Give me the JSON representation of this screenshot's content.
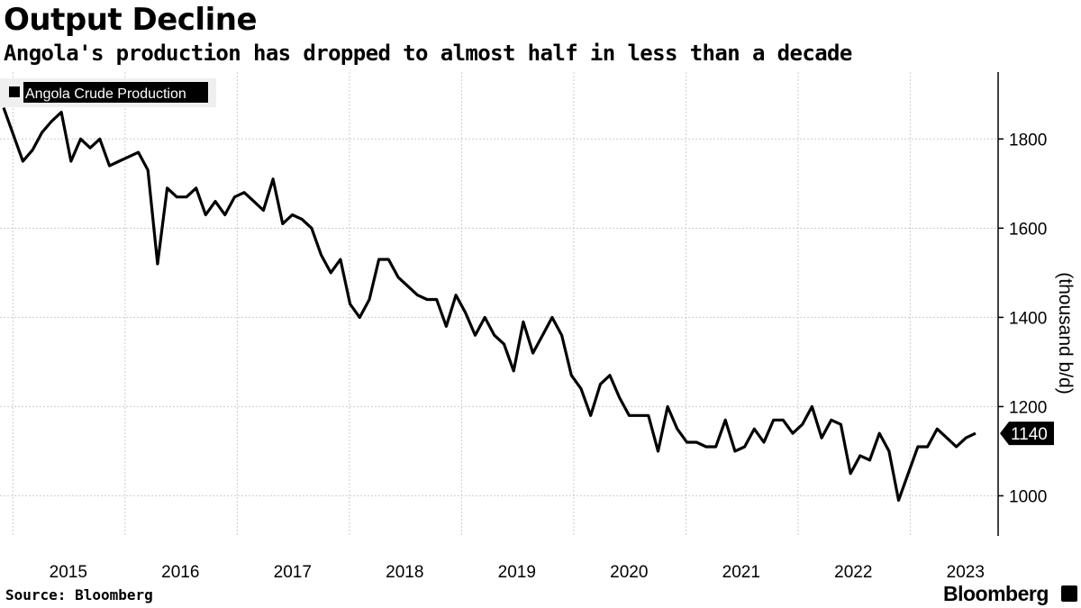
{
  "title": "Output Decline",
  "subtitle": "Angola's production has dropped to almost half in less than a decade",
  "source": "Source: Bloomberg",
  "brand": "Bloomberg",
  "chart_data": {
    "type": "line",
    "title": "Output Decline",
    "subtitle": "Angola's production has dropped to almost half in less than a decade",
    "ylabel": "(thousand b/d)",
    "ylim": [
      910,
      1950
    ],
    "y_ticks": [
      1000,
      1200,
      1400,
      1600,
      1800
    ],
    "x_ticks": [
      "2015",
      "2016",
      "2017",
      "2018",
      "2019",
      "2020",
      "2021",
      "2022",
      "2023"
    ],
    "x_start": "2014-12",
    "x_end": "2023-08",
    "grid": true,
    "legend": "top-left",
    "y_axis_side": "right",
    "line_color": "#000000",
    "end_value_label": "1140",
    "series": [
      {
        "name": "Angola Crude Production",
        "values": [
          1870,
          1810,
          1750,
          1775,
          1815,
          1840,
          1860,
          1750,
          1800,
          1780,
          1800,
          1740,
          1750,
          1760,
          1770,
          1730,
          1520,
          1690,
          1670,
          1670,
          1690,
          1630,
          1660,
          1630,
          1670,
          1680,
          1660,
          1640,
          1710,
          1610,
          1630,
          1620,
          1600,
          1540,
          1500,
          1530,
          1430,
          1400,
          1440,
          1530,
          1530,
          1490,
          1470,
          1450,
          1440,
          1440,
          1380,
          1450,
          1410,
          1360,
          1400,
          1360,
          1340,
          1280,
          1390,
          1320,
          1360,
          1400,
          1360,
          1270,
          1240,
          1180,
          1250,
          1270,
          1220,
          1180,
          1180,
          1180,
          1100,
          1200,
          1150,
          1120,
          1120,
          1110,
          1110,
          1170,
          1100,
          1110,
          1150,
          1120,
          1170,
          1170,
          1140,
          1160,
          1200,
          1130,
          1170,
          1160,
          1050,
          1090,
          1080,
          1140,
          1100,
          990,
          1050,
          1110,
          1110,
          1150,
          1130,
          1110,
          1130,
          1140
        ]
      }
    ]
  }
}
